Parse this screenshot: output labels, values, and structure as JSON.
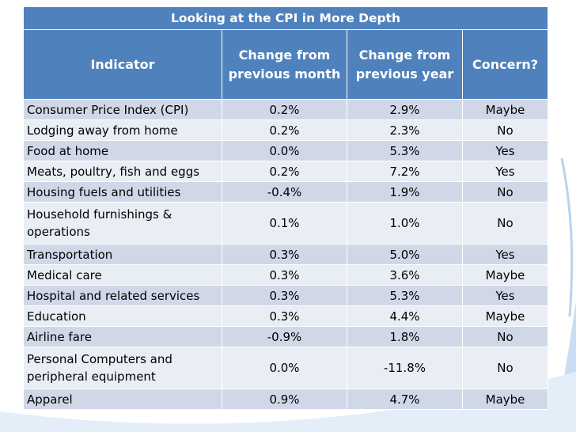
{
  "table": {
    "title": "Looking at the CPI in More Depth",
    "headers": [
      "Indicator",
      "Change from previous month",
      "Change from previous year",
      "Concern?"
    ],
    "rows": [
      {
        "indicator": "Consumer Price Index (CPI)",
        "month": "0.2%",
        "year": "2.9%",
        "concern": "Maybe"
      },
      {
        "indicator": "Lodging away from home",
        "month": "0.2%",
        "year": "2.3%",
        "concern": "No"
      },
      {
        "indicator": "Food at home",
        "month": "0.0%",
        "year": "5.3%",
        "concern": "Yes"
      },
      {
        "indicator": "Meats, poultry, fish and eggs",
        "month": "0.2%",
        "year": "7.2%",
        "concern": "Yes"
      },
      {
        "indicator": "Housing fuels and utilities",
        "month": "-0.4%",
        "year": "1.9%",
        "concern": "No"
      },
      {
        "indicator": "Household furnishings & operations",
        "month": "0.1%",
        "year": "1.0%",
        "concern": "No"
      },
      {
        "indicator": "Transportation",
        "month": "0.3%",
        "year": "5.0%",
        "concern": "Yes"
      },
      {
        "indicator": "Medical care",
        "month": "0.3%",
        "year": "3.6%",
        "concern": "Maybe"
      },
      {
        "indicator": "Hospital and related services",
        "month": "0.3%",
        "year": "5.3%",
        "concern": "Yes"
      },
      {
        "indicator": "Education",
        "month": "0.3%",
        "year": "4.4%",
        "concern": "Maybe"
      },
      {
        "indicator": "Airline fare",
        "month": "-0.9%",
        "year": "1.8%",
        "concern": "No"
      },
      {
        "indicator": "Personal Computers and peripheral equipment",
        "month": "0.0%",
        "year": "-11.8%",
        "concern": "No"
      },
      {
        "indicator": "Apparel",
        "month": "0.9%",
        "year": "4.7%",
        "concern": "Maybe"
      }
    ]
  },
  "colors": {
    "header": "#4f81bd",
    "row_odd": "#d0d8e8",
    "row_even": "#e9edf4",
    "swoosh": "#b9d4ee"
  }
}
